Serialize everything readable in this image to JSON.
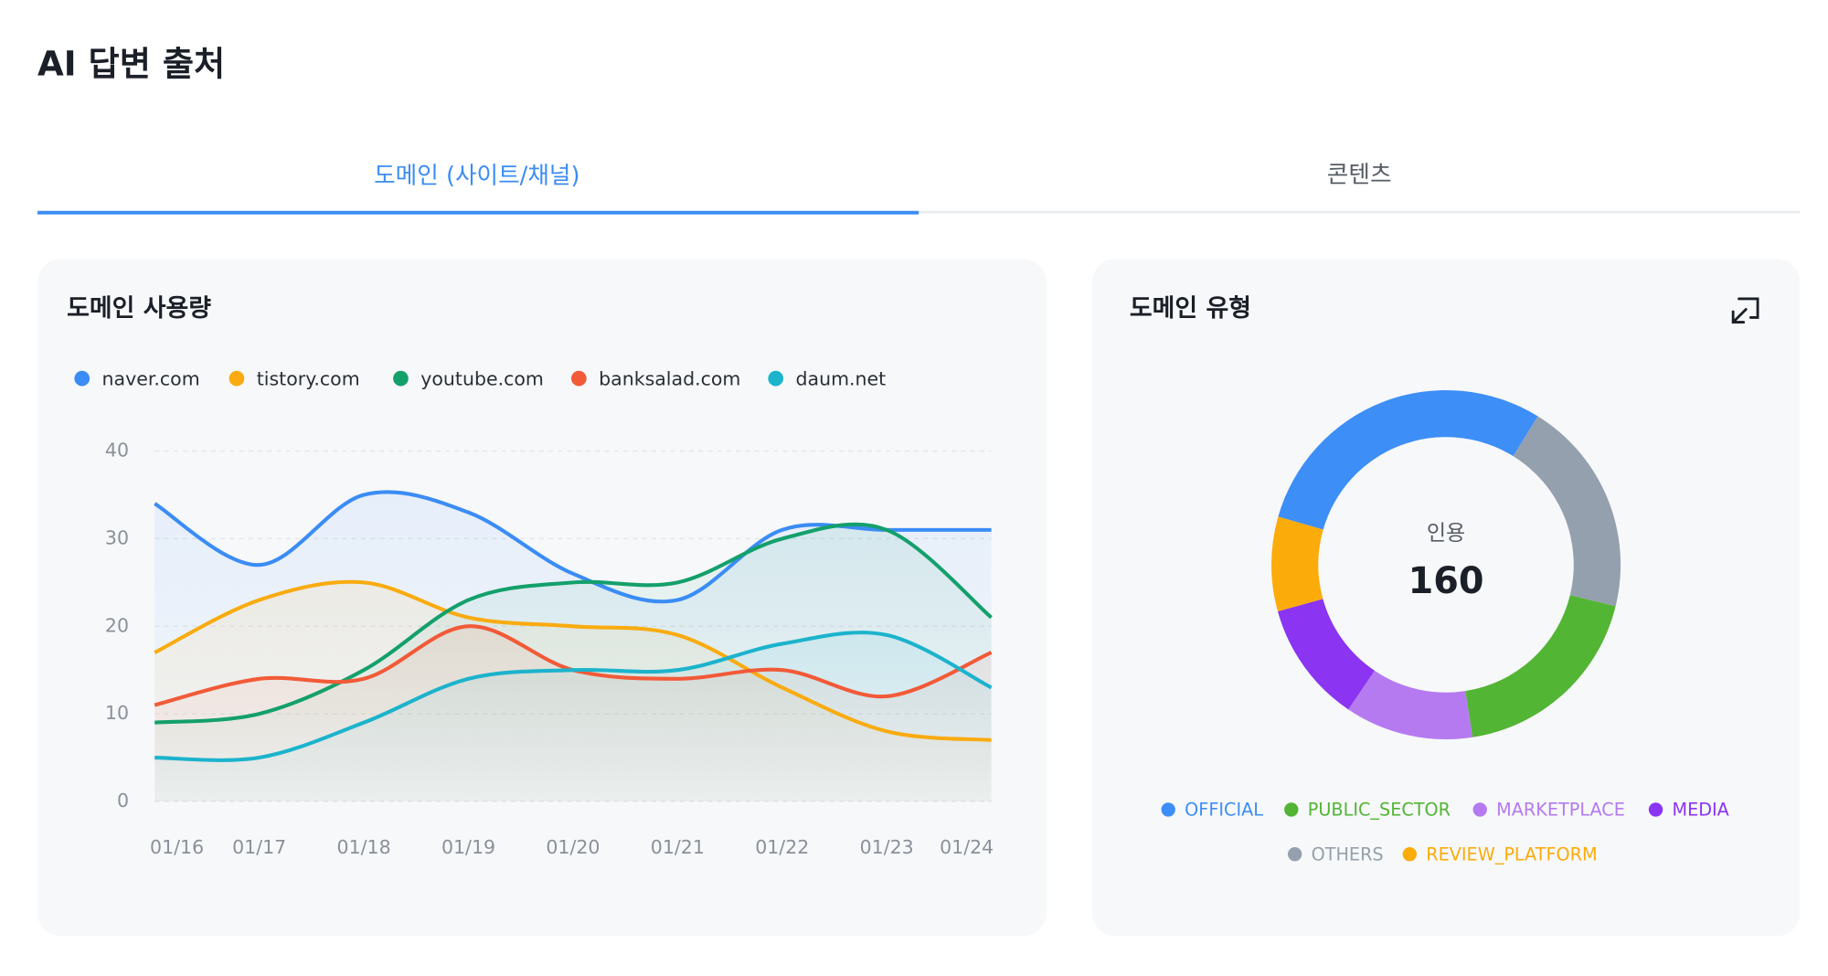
{
  "header": {
    "title": "AI 답변 출처"
  },
  "tabs": [
    "도메인 (사이트/채널)",
    "콘텐츠"
  ],
  "chart_data": [
    {
      "type": "line",
      "title": "도메인 사용량",
      "categories": [
        "01/16",
        "01/17",
        "01/18",
        "01/19",
        "01/20",
        "01/21",
        "01/22",
        "01/23",
        "01/24"
      ],
      "series": [
        {
          "name": "naver.com",
          "color": "#3b8cf5",
          "values": [
            34,
            27,
            35,
            33,
            26,
            23,
            31,
            31,
            31
          ]
        },
        {
          "name": "tistory.com",
          "color": "#f9ab10",
          "values": [
            17,
            23,
            25,
            21,
            20,
            19,
            13,
            8,
            7
          ]
        },
        {
          "name": "youtube.com",
          "color": "#14a06b",
          "values": [
            9,
            10,
            15,
            23,
            25,
            25,
            30,
            31,
            21
          ]
        },
        {
          "name": "banksalad.com",
          "color": "#f25a38",
          "values": [
            11,
            14,
            14,
            20,
            15,
            14,
            15,
            12,
            17
          ]
        },
        {
          "name": "daum.net",
          "color": "#1cb3cc",
          "values": [
            5,
            5,
            9,
            14,
            15,
            15,
            18,
            19,
            13
          ]
        }
      ],
      "ylim": [
        0,
        40
      ],
      "yticks": [
        0,
        10,
        20,
        30,
        40
      ],
      "grid": true
    },
    {
      "type": "donut",
      "title": "도메인 유형",
      "center_label": "인용",
      "center_value": 160,
      "categories": [
        "OFFICIAL",
        "OTHERS",
        "PUBLIC_SECTOR",
        "MARKETPLACE",
        "MEDIA",
        "REVIEW_PLATFORM"
      ],
      "values": [
        47,
        32,
        30,
        19,
        18,
        14
      ],
      "colors": [
        "#3d8ef7",
        "#94a0ad",
        "#52b534",
        "#b57af0",
        "#8b34f2",
        "#fbab0a"
      ]
    }
  ]
}
